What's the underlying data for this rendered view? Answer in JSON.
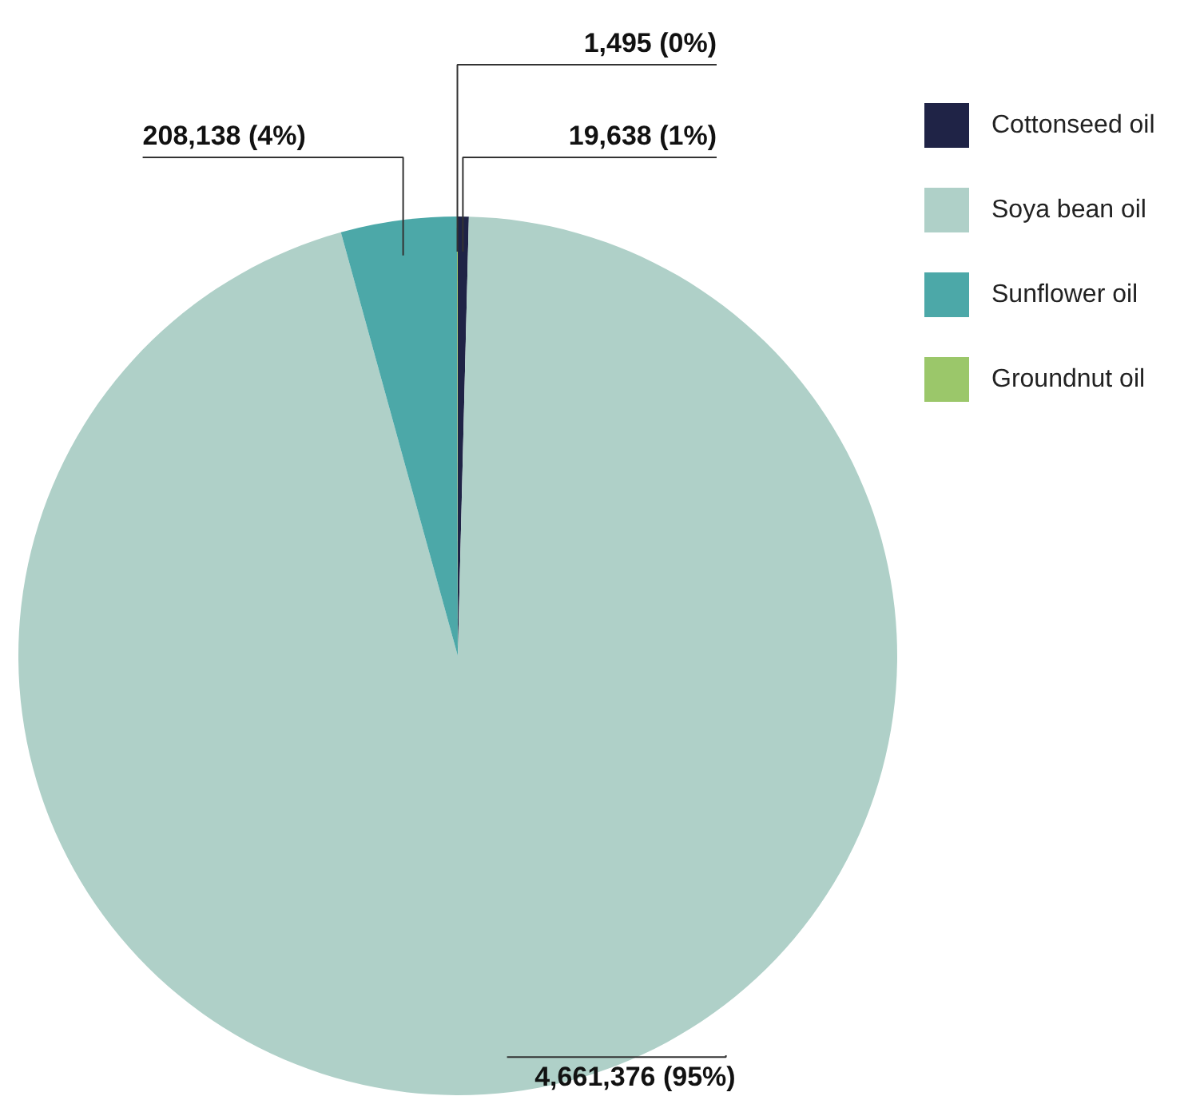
{
  "chart_data": {
    "type": "pie",
    "categories": [
      "Cottonseed oil",
      "Soya bean oil",
      "Sunflower oil",
      "Groundnut oil"
    ],
    "values": [
      19638,
      4661376,
      208138,
      1495
    ],
    "colors": [
      "#1f2346",
      "#afd0c8",
      "#4ca8a8",
      "#9bc76a"
    ],
    "value_labels": [
      "19,638 (1%)",
      "4,661,376 (95%)",
      "208,138 (4%)",
      "1,495 (0%)"
    ],
    "legend": "top right"
  }
}
